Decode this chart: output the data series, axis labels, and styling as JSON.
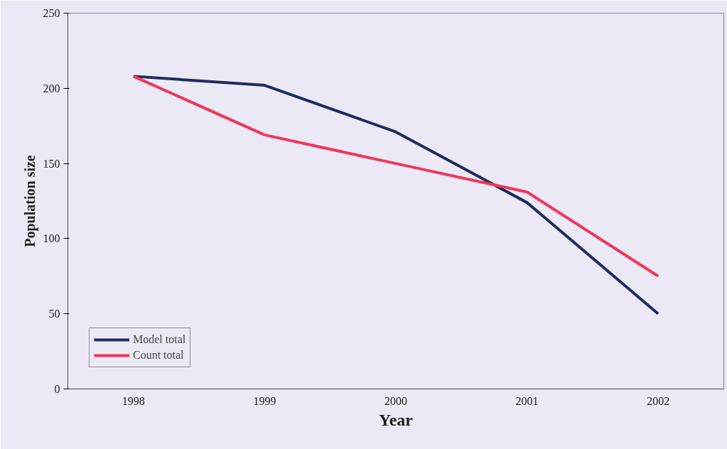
{
  "chart_data": {
    "type": "line",
    "xlabel": "Year",
    "ylabel": "Population size",
    "categories": [
      "1998",
      "1999",
      "2000",
      "2001",
      "2002"
    ],
    "series": [
      {
        "name": "Model total",
        "color": "#1f2d5c",
        "values": [
          208,
          202,
          171,
          124,
          50
        ]
      },
      {
        "name": "Count total",
        "color": "#f0365a",
        "values": [
          208,
          169,
          150,
          131,
          75
        ]
      }
    ],
    "ylim": [
      0,
      250
    ],
    "yticks": [
      0,
      50,
      100,
      150,
      200,
      250
    ],
    "grid": false,
    "legend": "bottom left",
    "marker": "none",
    "line_style": "solid"
  }
}
